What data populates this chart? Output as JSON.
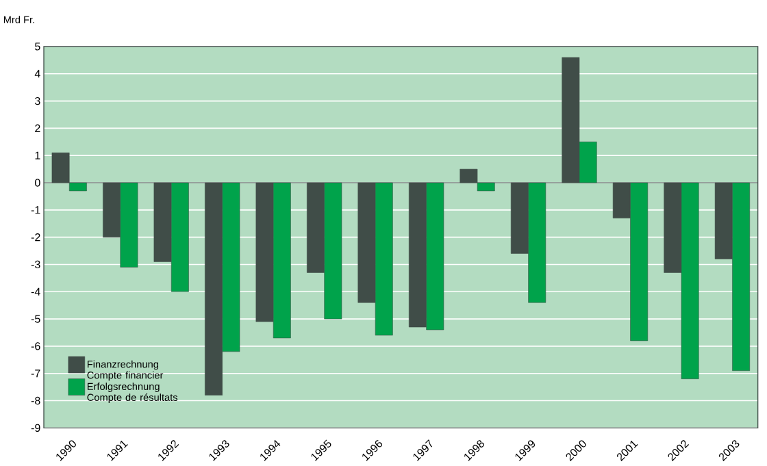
{
  "chart_data": {
    "type": "bar",
    "ylabel": "Mrd Fr.",
    "categories": [
      "1990",
      "1991",
      "1992",
      "1993",
      "1994",
      "1995",
      "1996",
      "1997",
      "1998",
      "1999",
      "2000",
      "2001",
      "2002",
      "2003"
    ],
    "series": [
      {
        "name": "Finanzrechnung Compte financier",
        "color": "#404d48",
        "values": [
          1.1,
          -2.0,
          -2.9,
          -7.8,
          -5.1,
          -3.3,
          -4.4,
          -5.3,
          0.5,
          -2.6,
          4.6,
          -1.3,
          -3.3,
          -2.8
        ]
      },
      {
        "name": "Erfolgsrechnung Compte de résultats",
        "color": "#00a34b",
        "values": [
          -0.3,
          -3.1,
          -4.0,
          -6.2,
          -5.7,
          -5.0,
          -5.6,
          -5.4,
          -0.3,
          -4.4,
          1.5,
          -5.8,
          -7.2,
          -6.9
        ]
      }
    ],
    "ylim": [
      -9,
      5
    ],
    "yticks": [
      -9,
      -8,
      -7,
      -6,
      -5,
      -4,
      -3,
      -2,
      -1,
      0,
      1,
      2,
      3,
      4,
      5
    ],
    "grid": "y",
    "legend": "bottom left"
  }
}
